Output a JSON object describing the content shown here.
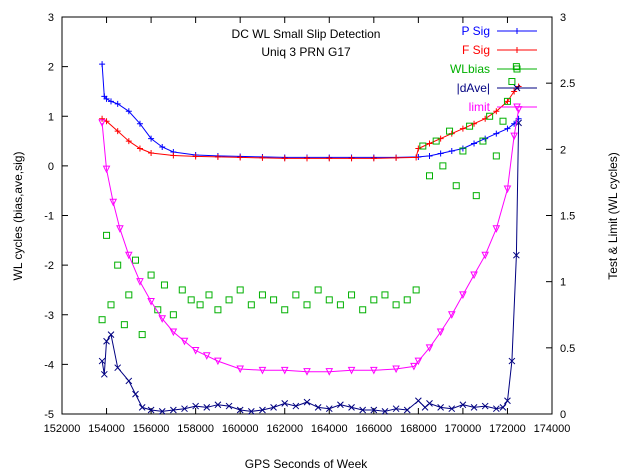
{
  "chart_data": {
    "type": "line",
    "title": "DC WL Small Slip Detection",
    "subtitle": "Uniq 3 PRN G17",
    "xlabel": "GPS Seconds of Week",
    "ylabel": "WL cycles (bias,ave,sig)",
    "y2label": "Test & Limit (WL cycles)",
    "xlim": [
      152000,
      174000
    ],
    "ylim": [
      -5,
      3
    ],
    "y2lim": [
      0,
      3
    ],
    "x_ticks": [
      "152000",
      "154000",
      "156000",
      "158000",
      "160000",
      "162000",
      "164000",
      "166000",
      "168000",
      "170000",
      "172000",
      "174000"
    ],
    "y_ticks": [
      "-5",
      "-4",
      "-3",
      "-2",
      "-1",
      "0",
      "1",
      "2",
      "3"
    ],
    "y2_ticks": [
      "0",
      "0.5",
      "1",
      "1.5",
      "2",
      "2.5",
      "3"
    ],
    "grid": false,
    "legend_position": "top-right",
    "series": [
      {
        "name": "P Sig",
        "axis": "left",
        "color": "#0000ff",
        "marker": "cross",
        "x": [
          153800,
          153900,
          154000,
          154200,
          154500,
          155000,
          155500,
          156000,
          156500,
          157000,
          158000,
          159000,
          160000,
          161000,
          162000,
          163000,
          164000,
          165000,
          166000,
          167000,
          168000,
          168500,
          169000,
          169500,
          170000,
          170500,
          171000,
          171500,
          172000,
          172300,
          172500
        ],
        "y": [
          2.05,
          1.4,
          1.35,
          1.3,
          1.25,
          1.1,
          0.85,
          0.55,
          0.38,
          0.28,
          0.22,
          0.2,
          0.19,
          0.18,
          0.17,
          0.17,
          0.17,
          0.17,
          0.17,
          0.17,
          0.18,
          0.2,
          0.25,
          0.3,
          0.35,
          0.45,
          0.55,
          0.65,
          0.75,
          0.85,
          0.95
        ]
      },
      {
        "name": "F Sig",
        "axis": "left",
        "color": "#ff0000",
        "marker": "plus",
        "x": [
          153800,
          154000,
          154500,
          155000,
          155500,
          156000,
          157000,
          158000,
          159000,
          160000,
          161000,
          162000,
          163000,
          164000,
          165000,
          166000,
          167000,
          167900,
          168000,
          168500,
          169000,
          169500,
          170000,
          170500,
          171000,
          171500,
          172000,
          172300,
          172500
        ],
        "y": [
          0.95,
          0.9,
          0.7,
          0.5,
          0.35,
          0.26,
          0.21,
          0.19,
          0.18,
          0.17,
          0.16,
          0.15,
          0.15,
          0.15,
          0.15,
          0.15,
          0.16,
          0.17,
          0.35,
          0.45,
          0.55,
          0.65,
          0.75,
          0.85,
          0.95,
          1.1,
          1.3,
          1.5,
          1.6
        ]
      },
      {
        "name": "WLbias",
        "axis": "left",
        "color": "#00b000",
        "marker": "square",
        "x": [
          153800,
          154000,
          154200,
          154500,
          154800,
          155000,
          155300,
          155600,
          156000,
          156300,
          156600,
          157000,
          157400,
          157800,
          158200,
          158600,
          159000,
          159500,
          160000,
          160500,
          161000,
          161500,
          162000,
          162500,
          163000,
          163500,
          164000,
          164500,
          165000,
          165500,
          166000,
          166500,
          167000,
          167500,
          167900,
          168200,
          168500,
          168800,
          169100,
          169400,
          169700,
          170000,
          170300,
          170600,
          170900,
          171200,
          171500,
          171800,
          172000,
          172200,
          172400
        ],
        "y": [
          -3.1,
          -1.4,
          -2.8,
          -2.0,
          -3.2,
          -2.6,
          -1.9,
          -3.4,
          -2.2,
          -2.9,
          -2.4,
          -3.0,
          -2.5,
          -2.7,
          -2.8,
          -2.6,
          -2.9,
          -2.7,
          -2.5,
          -2.8,
          -2.6,
          -2.7,
          -2.9,
          -2.6,
          -2.8,
          -2.5,
          -2.7,
          -2.8,
          -2.6,
          -2.9,
          -2.7,
          -2.6,
          -2.8,
          -2.7,
          -2.5,
          0.4,
          -0.2,
          0.5,
          0.0,
          0.7,
          -0.4,
          0.3,
          0.8,
          -0.6,
          0.5,
          1.0,
          0.2,
          0.9,
          1.3,
          1.7,
          2.0
        ]
      },
      {
        "name": "|dAve|",
        "axis": "right",
        "color": "#000080",
        "marker": "x",
        "x": [
          153800,
          153900,
          154000,
          154200,
          154500,
          155000,
          155300,
          155600,
          156000,
          156500,
          157000,
          157500,
          158000,
          158500,
          159000,
          159500,
          160000,
          160500,
          161000,
          161500,
          162000,
          162500,
          163000,
          163500,
          164000,
          164500,
          165000,
          165500,
          166000,
          166500,
          167000,
          167500,
          168000,
          168300,
          168500,
          169000,
          169500,
          170000,
          170500,
          171000,
          171500,
          171800,
          172000,
          172200,
          172400,
          172500
        ],
        "y": [
          0.4,
          0.3,
          0.55,
          0.6,
          0.35,
          0.25,
          0.15,
          0.05,
          0.03,
          0.02,
          0.03,
          0.04,
          0.06,
          0.05,
          0.07,
          0.06,
          0.03,
          0.02,
          0.03,
          0.05,
          0.08,
          0.06,
          0.09,
          0.05,
          0.04,
          0.07,
          0.05,
          0.03,
          0.03,
          0.02,
          0.04,
          0.03,
          0.1,
          0.05,
          0.08,
          0.05,
          0.04,
          0.07,
          0.05,
          0.06,
          0.04,
          0.05,
          0.1,
          0.4,
          1.2,
          2.2
        ]
      },
      {
        "name": "limit",
        "axis": "right",
        "color": "#ff00ff",
        "marker": "triangle",
        "x": [
          153800,
          154000,
          154300,
          154600,
          155000,
          155500,
          156000,
          156500,
          157000,
          157500,
          158000,
          158500,
          159000,
          160000,
          161000,
          162000,
          163000,
          164000,
          165000,
          166000,
          167000,
          167800,
          168000,
          168500,
          169000,
          169500,
          170000,
          170500,
          171000,
          171500,
          172000,
          172300,
          172500
        ],
        "y": [
          2.2,
          1.85,
          1.6,
          1.4,
          1.2,
          1.0,
          0.85,
          0.72,
          0.62,
          0.55,
          0.48,
          0.44,
          0.4,
          0.34,
          0.33,
          0.33,
          0.32,
          0.32,
          0.33,
          0.33,
          0.34,
          0.36,
          0.4,
          0.5,
          0.62,
          0.75,
          0.9,
          1.05,
          1.2,
          1.4,
          1.7,
          2.1,
          2.3
        ]
      }
    ]
  }
}
